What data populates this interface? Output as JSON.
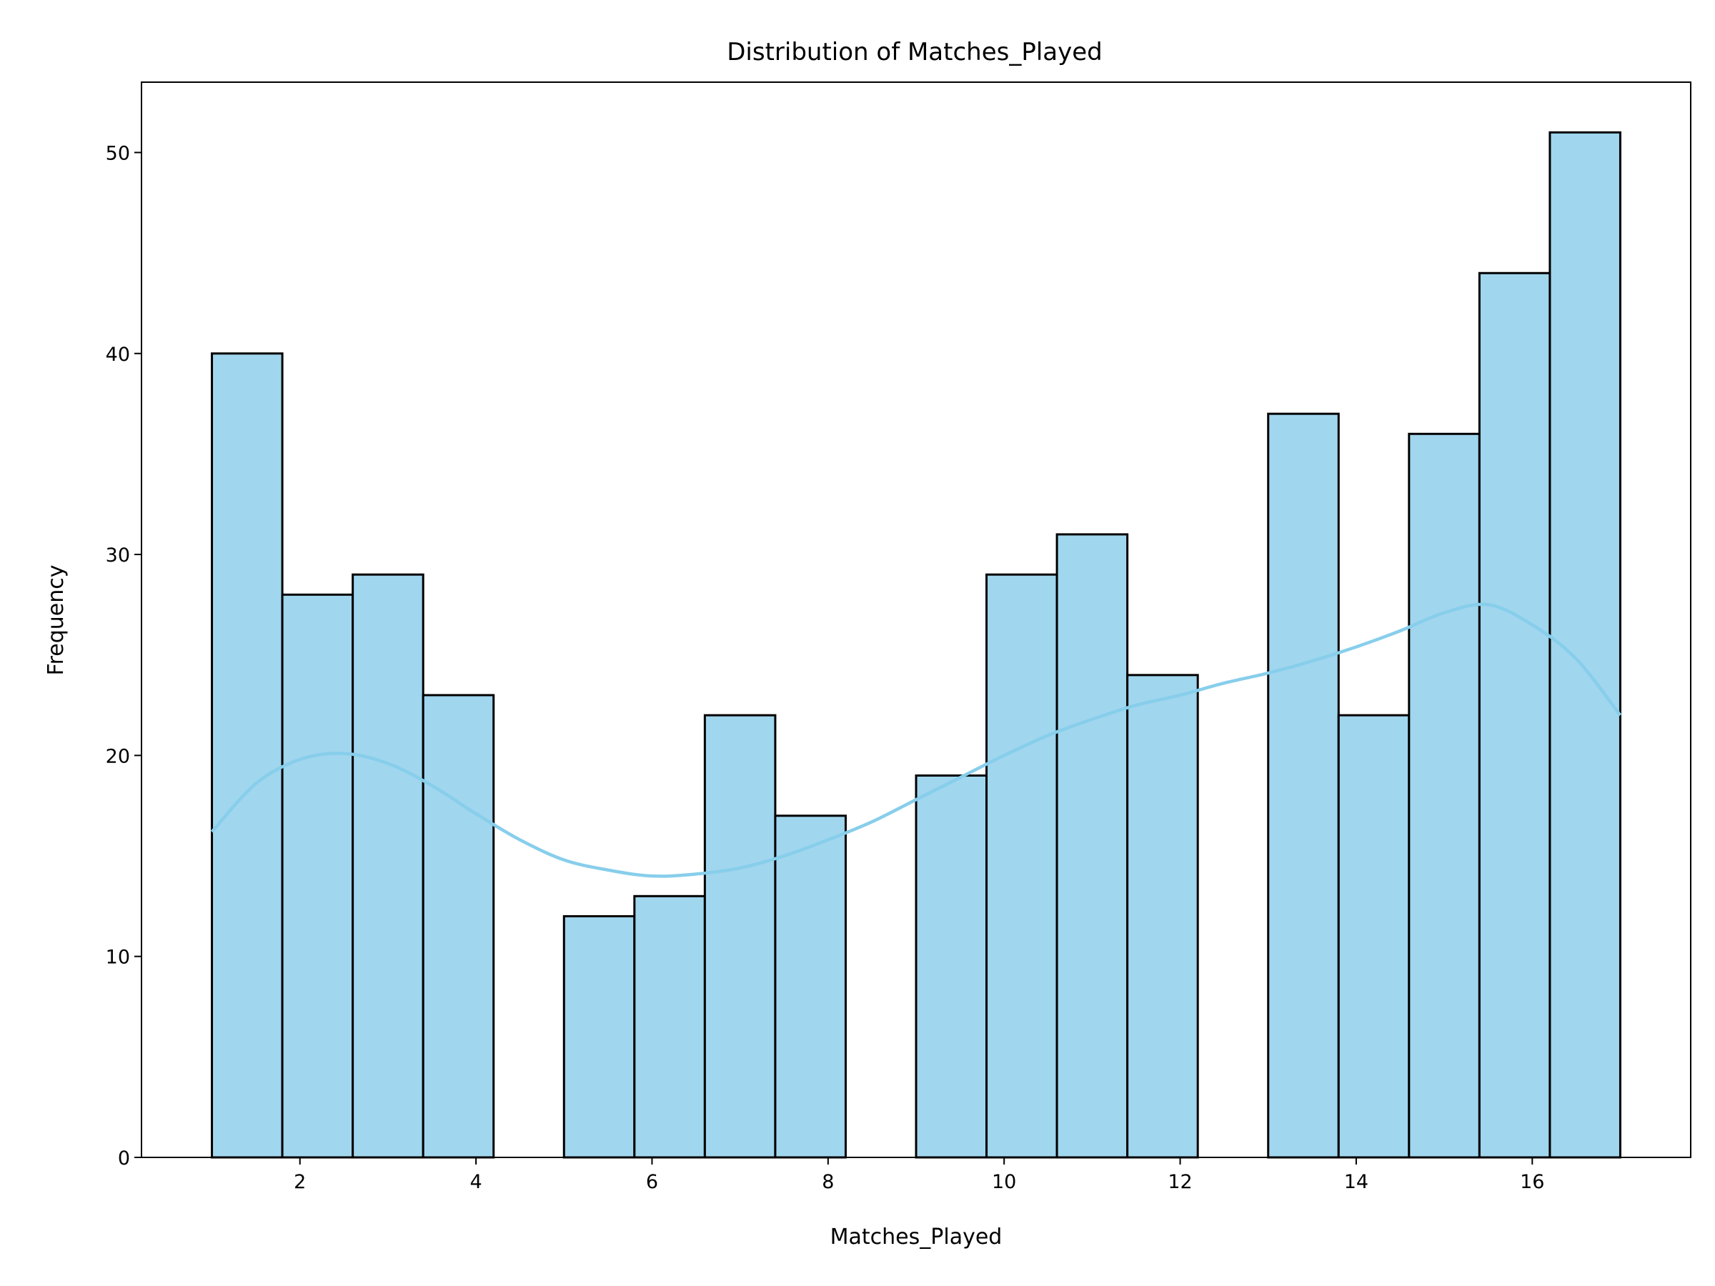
{
  "chart_data": {
    "type": "bar",
    "title": "Distribution of Matches_Played",
    "xlabel": "Matches_Played",
    "ylabel": "Frequency",
    "bin_edges": [
      1.0,
      1.8,
      2.6,
      3.4,
      4.2,
      5.0,
      5.8,
      6.6,
      7.4,
      8.2,
      9.0,
      9.8,
      10.6,
      11.4,
      12.2,
      13.0,
      13.8,
      14.6,
      15.4,
      16.2,
      17.0
    ],
    "values": [
      40,
      28,
      29,
      23,
      0,
      12,
      13,
      22,
      17,
      0,
      19,
      29,
      31,
      24,
      0,
      37,
      22,
      36,
      44,
      51
    ],
    "kde": {
      "x": [
        1.0,
        1.5,
        2.0,
        2.5,
        3.0,
        3.5,
        4.0,
        4.5,
        5.0,
        5.5,
        6.0,
        6.5,
        7.0,
        7.5,
        8.0,
        8.5,
        9.0,
        9.5,
        10.0,
        10.5,
        11.0,
        11.5,
        12.0,
        12.5,
        13.0,
        13.5,
        14.0,
        14.5,
        15.0,
        15.5,
        16.0,
        16.5,
        17.0
      ],
      "y": [
        16.2,
        18.6,
        19.8,
        20.1,
        19.6,
        18.5,
        17.1,
        15.8,
        14.8,
        14.3,
        14.0,
        14.1,
        14.4,
        15.0,
        15.8,
        16.7,
        17.8,
        18.9,
        20.0,
        21.0,
        21.8,
        22.5,
        23.0,
        23.6,
        24.1,
        24.7,
        25.4,
        26.2,
        27.1,
        27.5,
        26.5,
        24.8,
        22.0
      ]
    },
    "xlim": [
      0.2,
      17.8
    ],
    "ylim": [
      0,
      53.5
    ],
    "xticks": [
      2,
      4,
      6,
      8,
      10,
      12,
      14,
      16
    ],
    "yticks": [
      0,
      10,
      20,
      30,
      40,
      50
    ],
    "grid": false,
    "colors": {
      "bar_fill": "#a0d6ee",
      "bar_edge": "#000000",
      "kde_line": "#87ceeb"
    }
  }
}
